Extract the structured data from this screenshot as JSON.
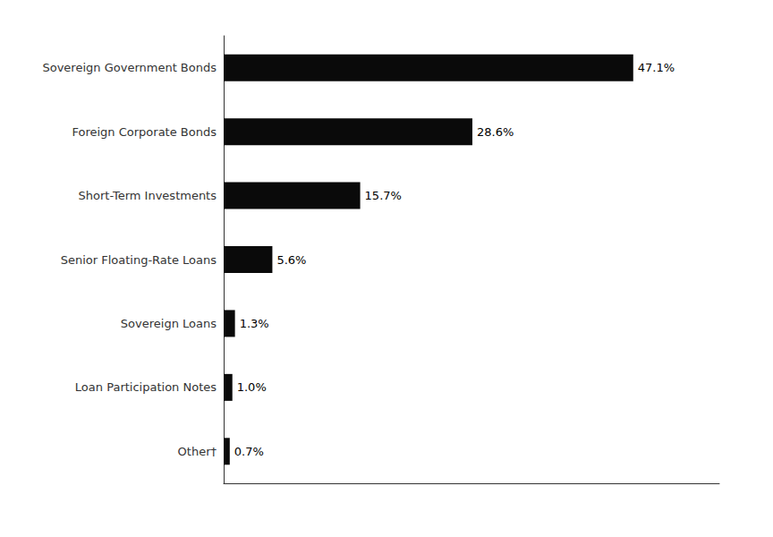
{
  "chart_data": {
    "type": "bar",
    "orientation": "horizontal",
    "categories": [
      "Other†",
      "Loan Participation Notes",
      "Sovereign Loans",
      "Senior Floating-Rate Loans",
      "Short-Term Investments",
      "Foreign Corporate Bonds",
      "Sovereign Government Bonds"
    ],
    "values": [
      0.7,
      1.0,
      1.3,
      5.6,
      15.7,
      28.6,
      47.1
    ],
    "value_labels": [
      "0.7%",
      "1.0%",
      "1.3%",
      "5.6%",
      "15.7%",
      "28.6%",
      "47.1%"
    ],
    "data_labels": true,
    "color": "#0a0a0a",
    "xlim": [
      0,
      57
    ],
    "xticks": [],
    "tick_labels": "y",
    "grid": false
  }
}
